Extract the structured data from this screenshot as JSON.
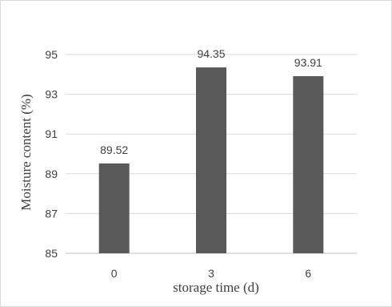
{
  "chart_data": {
    "type": "bar",
    "title": "",
    "xlabel": "storage time (d)",
    "ylabel": "Moisture content (%)",
    "categories": [
      "0",
      "3",
      "6"
    ],
    "values": [
      89.52,
      94.35,
      93.91
    ],
    "data_labels": [
      "89.52",
      "94.35",
      "93.91"
    ],
    "ylim": [
      85,
      95
    ],
    "yticks": [
      85,
      87,
      89,
      91,
      93,
      95
    ],
    "grid": true,
    "legend": "none",
    "bar_color": "#595959",
    "gridline_color": "#d9d9d9"
  }
}
